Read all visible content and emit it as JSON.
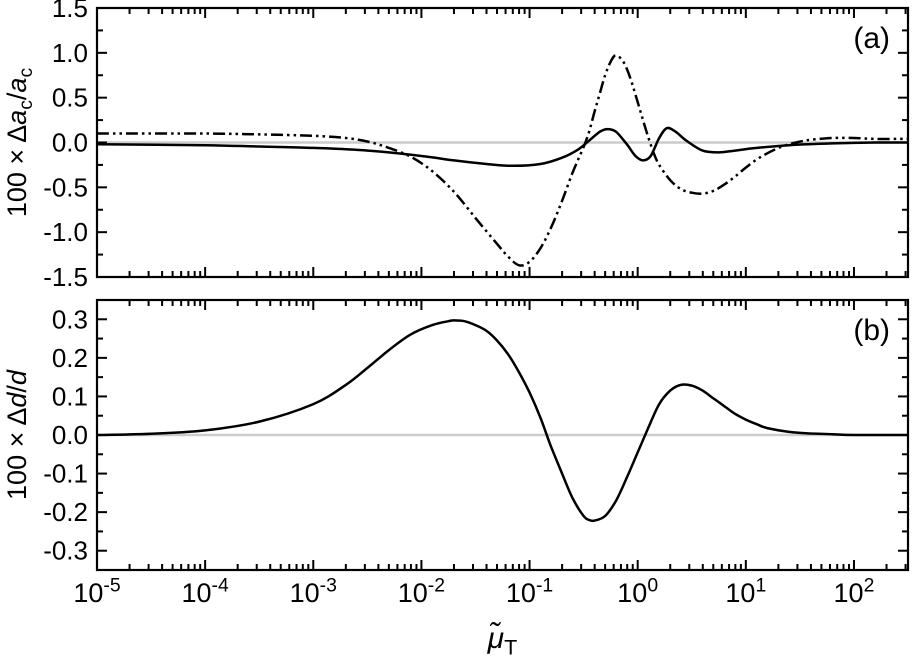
{
  "figure_style": {
    "background": "#ffffff",
    "axis_color": "#000000",
    "curve_color": "#000000",
    "zero_line_color": "#cccccc",
    "text_color": "#000000"
  },
  "xaxis": {
    "scale": "log",
    "xlim": [
      1e-05,
      316
    ],
    "xtick_exponents": [
      -5,
      -4,
      -3,
      -2,
      -1,
      0,
      1,
      2
    ],
    "xlabel_plain": "mu-tilde_T",
    "xlabel_rich": [
      {
        "t": "μ̃",
        "italic": true
      },
      {
        "t": "T",
        "sub": true
      }
    ]
  },
  "chart_data": [
    {
      "type": "line",
      "panel_label": "(a)",
      "title": "",
      "xlabel": "mu-tilde_T",
      "xscale": "log",
      "xlim": [
        1e-05,
        316
      ],
      "ylabel": "100 x Delta a_c / a_c",
      "ylabel_rich": [
        {
          "t": "100 × Δ"
        },
        {
          "t": "a",
          "italic": true
        },
        {
          "t": "c",
          "sub": true
        },
        {
          "t": "/"
        },
        {
          "t": "a",
          "italic": true
        },
        {
          "t": "c",
          "sub": true
        }
      ],
      "ylim": [
        -1.5,
        1.5
      ],
      "yticks": [
        -1.5,
        -1.0,
        -0.5,
        0.0,
        0.5,
        1.0,
        1.5
      ],
      "ytick_labels": [
        "-1.5",
        "-1.0",
        "-0.5",
        "0.0",
        "0.5",
        "1.0",
        "1.5"
      ],
      "yticks_minor": [
        -1.25,
        -0.75,
        -0.25,
        0.25,
        0.75,
        1.25
      ],
      "grid": false,
      "legend": "none",
      "series": [
        {
          "name": "solid-curve",
          "style": "solid",
          "x": [
            1e-05,
            0.0001,
            0.00032,
            0.001,
            0.0032,
            0.01,
            0.02,
            0.04,
            0.07,
            0.126,
            0.2,
            0.28,
            0.355,
            0.447,
            0.525,
            0.63,
            0.794,
            0.955,
            1.12,
            1.32,
            1.58,
            1.86,
            2.24,
            2.82,
            3.98,
            5.62,
            7.94,
            12.6,
            25.1,
            63.1,
            158,
            316
          ],
          "y": [
            -0.02,
            -0.03,
            -0.045,
            -0.06,
            -0.09,
            -0.15,
            -0.2,
            -0.24,
            -0.26,
            -0.24,
            -0.17,
            -0.08,
            0.02,
            0.12,
            0.15,
            0.12,
            -0.02,
            -0.15,
            -0.2,
            -0.15,
            0.05,
            0.16,
            0.12,
            0.02,
            -0.09,
            -0.11,
            -0.09,
            -0.06,
            -0.03,
            -0.01,
            0,
            0
          ]
        },
        {
          "name": "dash-dot-dot-curve",
          "style": "dash-dot-dot",
          "x": [
            1e-05,
            0.0001,
            0.00032,
            0.001,
            0.002,
            0.0032,
            0.005,
            0.008,
            0.0126,
            0.02,
            0.032,
            0.05,
            0.063,
            0.08,
            0.1,
            0.126,
            0.158,
            0.2,
            0.251,
            0.316,
            0.355,
            0.4,
            0.447,
            0.5,
            0.562,
            0.62,
            0.708,
            0.794,
            0.891,
            1.0,
            1.12,
            1.26,
            1.41,
            1.58,
            2.0,
            2.51,
            3.16,
            3.98,
            5.01,
            6.31,
            7.94,
            10,
            12.6,
            15.8,
            20,
            25.1,
            31.6,
            39.8,
            63.1,
            100,
            158,
            251,
            316
          ],
          "y": [
            0.1,
            0.1,
            0.09,
            0.075,
            0.05,
            0.01,
            -0.06,
            -0.16,
            -0.32,
            -0.55,
            -0.85,
            -1.13,
            -1.27,
            -1.37,
            -1.33,
            -1.18,
            -0.95,
            -0.65,
            -0.33,
            -0.05,
            0.12,
            0.35,
            0.55,
            0.75,
            0.9,
            0.97,
            0.93,
            0.82,
            0.65,
            0.45,
            0.25,
            0.05,
            -0.12,
            -0.25,
            -0.42,
            -0.52,
            -0.56,
            -0.57,
            -0.54,
            -0.47,
            -0.38,
            -0.28,
            -0.19,
            -0.12,
            -0.06,
            -0.02,
            0.01,
            0.03,
            0.05,
            0.05,
            0.04,
            0.04,
            0.04
          ]
        }
      ]
    },
    {
      "type": "line",
      "panel_label": "(b)",
      "title": "",
      "xlabel": "mu-tilde_T",
      "xscale": "log",
      "xlim": [
        1e-05,
        316
      ],
      "ylabel": "100 x Delta d / d",
      "ylabel_rich": [
        {
          "t": "100 × Δ"
        },
        {
          "t": "d",
          "italic": true
        },
        {
          "t": "/"
        },
        {
          "t": "d",
          "italic": true
        }
      ],
      "ylim": [
        -0.35,
        0.35
      ],
      "yticks": [
        -0.3,
        -0.2,
        -0.1,
        0.0,
        0.1,
        0.2,
        0.3
      ],
      "ytick_labels": [
        "-0.3",
        "-0.2",
        "-0.1",
        "0.0",
        "0.1",
        "0.2",
        "0.3"
      ],
      "yticks_minor": [
        -0.25,
        -0.15,
        -0.05,
        0.05,
        0.15,
        0.25
      ],
      "grid": false,
      "legend": "none",
      "series": [
        {
          "name": "solid-curve",
          "style": "solid",
          "x": [
            1e-05,
            3.2e-05,
            0.0001,
            0.00032,
            0.001,
            0.002,
            0.0032,
            0.005,
            0.0079,
            0.0126,
            0.0178,
            0.02,
            0.025,
            0.0316,
            0.04,
            0.05,
            0.063,
            0.079,
            0.1,
            0.126,
            0.158,
            0.2,
            0.251,
            0.316,
            0.355,
            0.398,
            0.5,
            0.631,
            0.794,
            1.0,
            1.26,
            1.58,
            2.0,
            2.51,
            3.16,
            3.98,
            5.01,
            6.31,
            7.94,
            10,
            12.6,
            15.8,
            25.1,
            39.8,
            63.1,
            100,
            316
          ],
          "y": [
            0,
            0.003,
            0.012,
            0.035,
            0.08,
            0.13,
            0.175,
            0.22,
            0.26,
            0.285,
            0.295,
            0.297,
            0.295,
            0.285,
            0.27,
            0.245,
            0.21,
            0.165,
            0.11,
            0.045,
            -0.03,
            -0.1,
            -0.165,
            -0.21,
            -0.22,
            -0.222,
            -0.21,
            -0.17,
            -0.11,
            -0.045,
            0.02,
            0.08,
            0.115,
            0.13,
            0.128,
            0.115,
            0.095,
            0.075,
            0.055,
            0.04,
            0.028,
            0.018,
            0.008,
            0.004,
            0.002,
            0,
            0
          ]
        }
      ]
    }
  ]
}
